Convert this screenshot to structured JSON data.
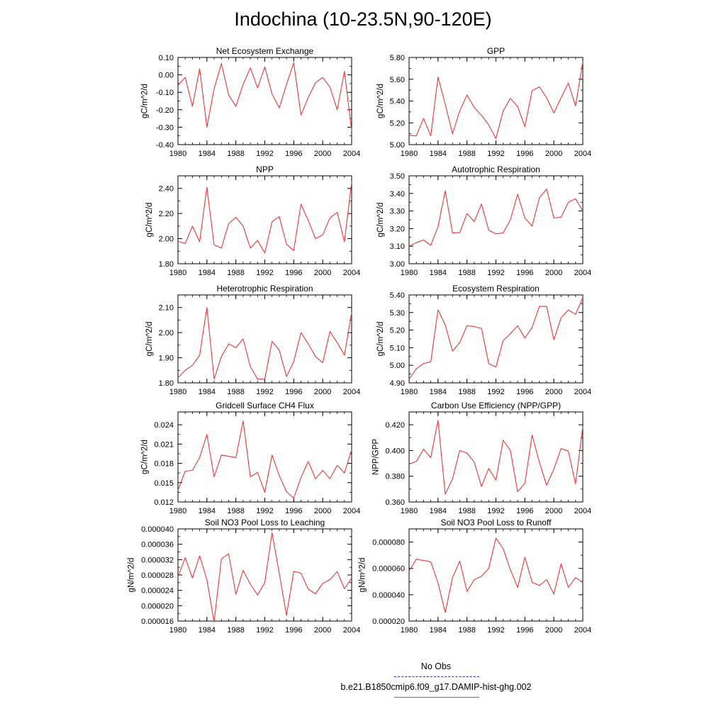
{
  "title": "Indochina (10-23.5N,90-120E)",
  "legend": [
    {
      "label": "No Obs",
      "color": "#3030c0",
      "style": "dashed"
    },
    {
      "label": "b.e21.B1850cmip6.f09_g17.DAMIP-hist-ghg.002",
      "color": "#e8383b",
      "style": "solid"
    }
  ],
  "chart_data": [
    {
      "type": "line",
      "title": "Net Ecosystem Exchange",
      "ylabel": "gC/m^2/d",
      "xlim": [
        1980,
        2004
      ],
      "ylim": [
        -0.4,
        0.1
      ],
      "xticks": [
        "1980",
        "1984",
        "1988",
        "1992",
        "1996",
        "2000",
        "2004"
      ],
      "yticks": [
        "0.10",
        "0.00",
        "-0.10",
        "-0.20",
        "-0.30",
        "-0.40"
      ],
      "x": [
        1980,
        1981,
        1982,
        1983,
        1984,
        1985,
        1986,
        1987,
        1988,
        1989,
        1990,
        1991,
        1992,
        1993,
        1994,
        1995,
        1996,
        1997,
        1998,
        1999,
        2000,
        2001,
        2002,
        2003,
        2004
      ],
      "series": [
        {
          "color": "#e8383b",
          "values": [
            -0.06,
            -0.015,
            -0.18,
            0.035,
            -0.3,
            -0.08,
            0.065,
            -0.115,
            -0.18,
            -0.055,
            0.04,
            -0.075,
            0.045,
            -0.11,
            -0.19,
            -0.055,
            0.07,
            -0.23,
            -0.13,
            -0.045,
            -0.015,
            -0.07,
            -0.2,
            0.02,
            -0.32
          ]
        }
      ]
    },
    {
      "type": "line",
      "title": "GPP",
      "ylabel": "gC/m^2/d",
      "xlim": [
        1980,
        2004
      ],
      "ylim": [
        5.0,
        5.8
      ],
      "xticks": [
        "1980",
        "1984",
        "1988",
        "1992",
        "1996",
        "2000",
        "2004"
      ],
      "yticks": [
        "5.80",
        "5.60",
        "5.40",
        "5.20",
        "5.00"
      ],
      "x": [
        1980,
        1981,
        1982,
        1983,
        1984,
        1985,
        1986,
        1987,
        1988,
        1989,
        1990,
        1991,
        1992,
        1993,
        1994,
        1995,
        1996,
        1997,
        1998,
        1999,
        2000,
        2001,
        2002,
        2003,
        2004
      ],
      "series": [
        {
          "color": "#e8383b",
          "values": [
            5.085,
            5.08,
            5.24,
            5.08,
            5.62,
            5.37,
            5.1,
            5.31,
            5.455,
            5.34,
            5.27,
            5.18,
            5.055,
            5.31,
            5.425,
            5.35,
            5.165,
            5.495,
            5.53,
            5.43,
            5.29,
            5.43,
            5.565,
            5.355,
            5.76
          ]
        }
      ]
    },
    {
      "type": "line",
      "title": "NPP",
      "ylabel": "gC/m^2/d",
      "xlim": [
        1980,
        2004
      ],
      "ylim": [
        1.8,
        2.5
      ],
      "xticks": [
        "1980",
        "1984",
        "1988",
        "1992",
        "1996",
        "2000",
        "2004"
      ],
      "yticks": [
        "2.40",
        "2.20",
        "2.00",
        "1.80"
      ],
      "x": [
        1980,
        1981,
        1982,
        1983,
        1984,
        1985,
        1986,
        1987,
        1988,
        1989,
        1990,
        1991,
        1992,
        1993,
        1994,
        1995,
        1996,
        1997,
        1998,
        1999,
        2000,
        2001,
        2002,
        2003,
        2004
      ],
      "series": [
        {
          "color": "#e8383b",
          "values": [
            1.98,
            1.96,
            2.1,
            1.975,
            2.41,
            1.95,
            1.925,
            2.12,
            2.17,
            2.1,
            1.925,
            1.985,
            1.885,
            2.135,
            2.175,
            1.955,
            1.905,
            2.275,
            2.145,
            2.0,
            2.03,
            2.165,
            2.21,
            1.975,
            2.45
          ]
        }
      ]
    },
    {
      "type": "line",
      "title": "Autotrophic Respiration",
      "ylabel": "gC/m^2/d",
      "xlim": [
        1980,
        2004
      ],
      "ylim": [
        3.0,
        3.5
      ],
      "xticks": [
        "1980",
        "1984",
        "1988",
        "1992",
        "1996",
        "2000",
        "2004"
      ],
      "yticks": [
        "3.50",
        "3.40",
        "3.30",
        "3.20",
        "3.10",
        "3.00"
      ],
      "x": [
        1980,
        1981,
        1982,
        1983,
        1984,
        1985,
        1986,
        1987,
        1988,
        1989,
        1990,
        1991,
        1992,
        1993,
        1994,
        1995,
        1996,
        1997,
        1998,
        1999,
        2000,
        2001,
        2002,
        2003,
        2004
      ],
      "series": [
        {
          "color": "#e8383b",
          "values": [
            3.1,
            3.12,
            3.135,
            3.105,
            3.21,
            3.415,
            3.175,
            3.178,
            3.285,
            3.24,
            3.34,
            3.19,
            3.17,
            3.175,
            3.25,
            3.395,
            3.26,
            3.215,
            3.375,
            3.425,
            3.26,
            3.265,
            3.35,
            3.37,
            3.3
          ]
        }
      ]
    },
    {
      "type": "line",
      "title": "Heterotrophic Respiration",
      "ylabel": "gC/m^2/d",
      "xlim": [
        1980,
        2004
      ],
      "ylim": [
        1.8,
        2.15
      ],
      "xticks": [
        "1980",
        "1984",
        "1988",
        "1992",
        "1996",
        "2000",
        "2004"
      ],
      "yticks": [
        "2.10",
        "2.00",
        "1.90",
        "1.80"
      ],
      "x": [
        1980,
        1981,
        1982,
        1983,
        1984,
        1985,
        1986,
        1987,
        1988,
        1989,
        1990,
        1991,
        1992,
        1993,
        1994,
        1995,
        1996,
        1997,
        1998,
        1999,
        2000,
        2001,
        2002,
        2003,
        2004
      ],
      "series": [
        {
          "color": "#e8383b",
          "values": [
            1.82,
            1.85,
            1.87,
            1.91,
            2.1,
            1.815,
            1.905,
            1.955,
            1.94,
            1.975,
            1.865,
            1.815,
            1.815,
            1.965,
            1.93,
            1.825,
            1.885,
            2.0,
            1.955,
            1.905,
            1.88,
            2.005,
            1.96,
            1.91,
            2.08
          ]
        }
      ]
    },
    {
      "type": "line",
      "title": "Ecosystem Respiration",
      "ylabel": "gC/m^2/d",
      "xlim": [
        1980,
        2004
      ],
      "ylim": [
        4.9,
        5.4
      ],
      "xticks": [
        "1980",
        "1984",
        "1988",
        "1992",
        "1996",
        "2000",
        "2004"
      ],
      "yticks": [
        "5.40",
        "5.30",
        "5.20",
        "5.10",
        "5.00",
        "4.90"
      ],
      "x": [
        1980,
        1981,
        1982,
        1983,
        1984,
        1985,
        1986,
        1987,
        1988,
        1989,
        1990,
        1991,
        1992,
        1993,
        1994,
        1995,
        1996,
        1997,
        1998,
        1999,
        2000,
        2001,
        2002,
        2003,
        2004
      ],
      "series": [
        {
          "color": "#e8383b",
          "values": [
            4.92,
            4.98,
            5.01,
            5.02,
            5.315,
            5.23,
            5.08,
            5.13,
            5.225,
            5.22,
            5.21,
            5.01,
            4.99,
            5.14,
            5.18,
            5.225,
            5.155,
            5.215,
            5.335,
            5.335,
            5.145,
            5.27,
            5.315,
            5.29,
            5.385
          ]
        }
      ]
    },
    {
      "type": "line",
      "title": "Gridcell Surface CH4 Flux",
      "ylabel": "gC/m^2/d",
      "xlim": [
        1980,
        2004
      ],
      "ylim": [
        0.012,
        0.026
      ],
      "xticks": [
        "1980",
        "1984",
        "1988",
        "1992",
        "1996",
        "2000",
        "2004"
      ],
      "yticks": [
        "0.024",
        "0.021",
        "0.018",
        "0.015",
        "0.012"
      ],
      "x": [
        1980,
        1981,
        1982,
        1983,
        1984,
        1985,
        1986,
        1987,
        1988,
        1989,
        1990,
        1991,
        1992,
        1993,
        1994,
        1995,
        1996,
        1997,
        1998,
        1999,
        2000,
        2001,
        2002,
        2003,
        2004
      ],
      "series": [
        {
          "color": "#e8383b",
          "values": [
            0.0138,
            0.0168,
            0.0169,
            0.0189,
            0.0225,
            0.0159,
            0.0193,
            0.0191,
            0.0189,
            0.0246,
            0.0159,
            0.0166,
            0.0135,
            0.0193,
            0.0161,
            0.0136,
            0.0126,
            0.0158,
            0.0183,
            0.0156,
            0.0169,
            0.0156,
            0.0177,
            0.0165,
            0.0201
          ]
        }
      ]
    },
    {
      "type": "line",
      "title": "Carbon Use Efficiency (NPP/GPP)",
      "ylabel": "NPP/GPP",
      "xlim": [
        1980,
        2004
      ],
      "ylim": [
        0.36,
        0.43
      ],
      "xticks": [
        "1980",
        "1984",
        "1988",
        "1992",
        "1996",
        "2000",
        "2004"
      ],
      "yticks": [
        "0.420",
        "0.400",
        "0.380",
        "0.360"
      ],
      "x": [
        1980,
        1981,
        1982,
        1983,
        1984,
        1985,
        1986,
        1987,
        1988,
        1989,
        1990,
        1991,
        1992,
        1993,
        1994,
        1995,
        1996,
        1997,
        1998,
        1999,
        2000,
        2001,
        2002,
        2003,
        2004
      ],
      "series": [
        {
          "color": "#e8383b",
          "values": [
            0.3895,
            0.3915,
            0.401,
            0.3945,
            0.4235,
            0.366,
            0.378,
            0.4,
            0.398,
            0.391,
            0.372,
            0.386,
            0.377,
            0.408,
            0.4,
            0.368,
            0.3745,
            0.412,
            0.391,
            0.373,
            0.3855,
            0.4015,
            0.3995,
            0.374,
            0.4185
          ]
        }
      ]
    },
    {
      "type": "line",
      "title": "Soil NO3 Pool Loss to Leaching",
      "ylabel": "gN/m^2/d",
      "xlim": [
        1980,
        2004
      ],
      "ylim": [
        1.6e-05,
        4e-05
      ],
      "xticks": [
        "1980",
        "1984",
        "1988",
        "1992",
        "1996",
        "2000",
        "2004"
      ],
      "yticks": [
        "0.000040",
        "0.000036",
        "0.000032",
        "0.000028",
        "0.000024",
        "0.000020",
        "0.000016"
      ],
      "x": [
        1980,
        1981,
        1982,
        1983,
        1984,
        1985,
        1986,
        1987,
        1988,
        1989,
        1990,
        1991,
        1992,
        1993,
        1994,
        1995,
        1996,
        1997,
        1998,
        1999,
        2000,
        2001,
        2002,
        2003,
        2004
      ],
      "series": [
        {
          "color": "#e8383b",
          "values": [
            2.75e-05,
            3.25e-05,
            2.72e-05,
            3.3e-05,
            2.68e-05,
            1.58e-05,
            3.22e-05,
            3.35e-05,
            2.3e-05,
            2.92e-05,
            2.56e-05,
            2.28e-05,
            2.6e-05,
            3.9e-05,
            2.84e-05,
            1.75e-05,
            2.89e-05,
            2.85e-05,
            2.43e-05,
            2.31e-05,
            2.58e-05,
            2.68e-05,
            2.89e-05,
            2.44e-05,
            2.72e-05
          ]
        }
      ]
    },
    {
      "type": "line",
      "title": "Soil NO3 Pool Loss to Runoff",
      "ylabel": "gN/m^2/d",
      "xlim": [
        1980,
        2004
      ],
      "ylim": [
        2e-05,
        9e-05
      ],
      "xticks": [
        "1980",
        "1984",
        "1988",
        "1992",
        "1996",
        "2000",
        "2004"
      ],
      "yticks": [
        "0.000080",
        "0.000060",
        "0.000040",
        "0.000020"
      ],
      "x": [
        1980,
        1981,
        1982,
        1983,
        1984,
        1985,
        1986,
        1987,
        1988,
        1989,
        1990,
        1991,
        1992,
        1993,
        1994,
        1995,
        1996,
        1997,
        1998,
        1999,
        2000,
        2001,
        2002,
        2003,
        2004
      ],
      "series": [
        {
          "color": "#e8383b",
          "values": [
            5.8e-05,
            6.7e-05,
            6.6e-05,
            6.5e-05,
            4.9e-05,
            2.65e-05,
            5.3e-05,
            6.55e-05,
            4.25e-05,
            5.15e-05,
            5.4e-05,
            6e-05,
            8.3e-05,
            7.5e-05,
            5.9e-05,
            4.55e-05,
            6.85e-05,
            4.95e-05,
            4.7e-05,
            5.15e-05,
            4.05e-05,
            6.35e-05,
            4.55e-05,
            5.3e-05,
            4.95e-05
          ]
        }
      ]
    }
  ]
}
